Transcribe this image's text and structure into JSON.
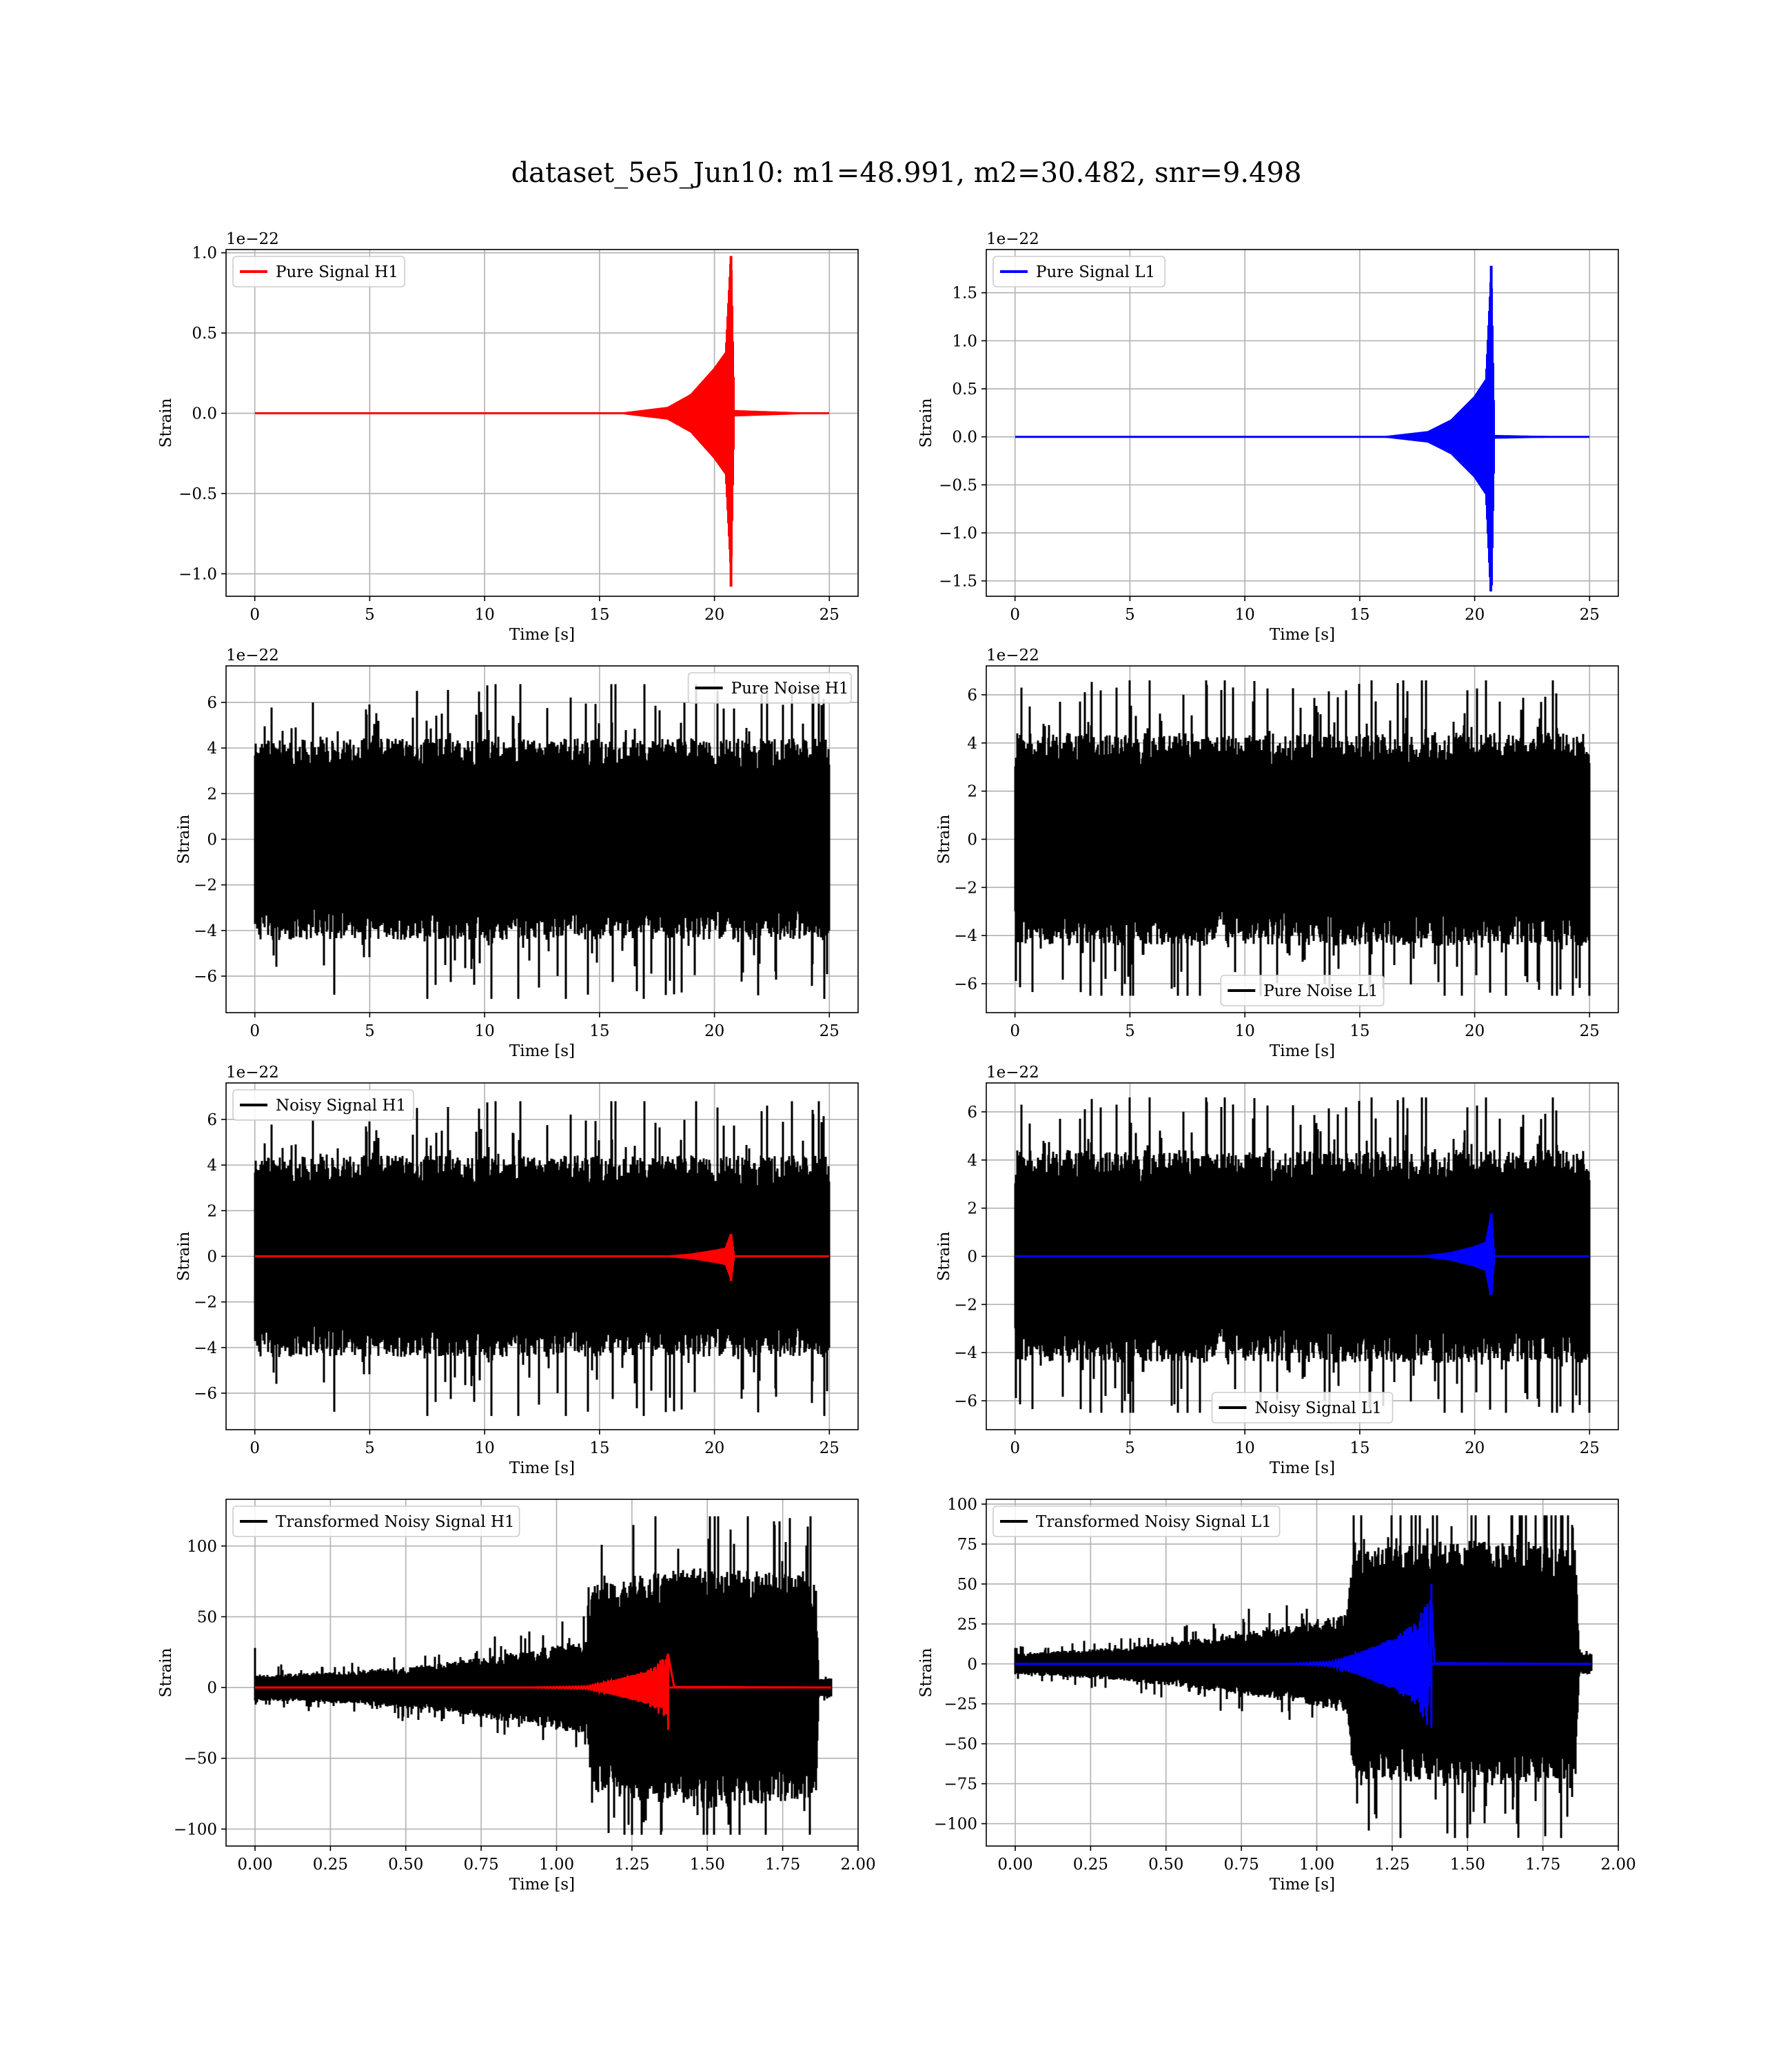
{
  "figure": {
    "title": "dataset_5e5_Jun10: m1=48.991, m2=30.482, snr=9.498"
  },
  "colors": {
    "h1_signal": "#ff0000",
    "l1_signal": "#0000ff",
    "noise": "#000000",
    "grid": "#b0b0b0"
  },
  "chart_data": [
    {
      "type": "line",
      "id": "pure-signal-h1",
      "xlabel": "Time [s]",
      "ylabel": "Strain",
      "offset_text": "1e−22",
      "xlim": [
        -1.25,
        26.25
      ],
      "ylim": [
        -1.14,
        1.02
      ],
      "xticks": [
        0,
        5,
        10,
        15,
        20,
        25
      ],
      "xtick_labels": [
        "0",
        "5",
        "10",
        "15",
        "20",
        "25"
      ],
      "yticks": [
        -1.0,
        -0.5,
        0.0,
        0.5,
        1.0
      ],
      "ytick_labels": [
        "−1.0",
        "−0.5",
        "0.0",
        "0.5",
        "1.0"
      ],
      "legend": {
        "label": "Pure Signal H1",
        "loc": "upper left",
        "color": "#ff0000"
      },
      "series": [
        {
          "name": "Pure Signal H1",
          "kind": "chirp",
          "color": "#ff0000",
          "t_start": 0,
          "t_end": 25,
          "t_merger": 20.72,
          "merger_min": -1.08,
          "merger_max": 0.98,
          "envelope": [
            [
              0,
              0
            ],
            [
              16,
              0.005
            ],
            [
              18,
              0.04
            ],
            [
              19,
              0.12
            ],
            [
              20,
              0.28
            ],
            [
              20.5,
              0.38
            ],
            [
              20.72,
              0.98
            ],
            [
              20.85,
              0.02
            ],
            [
              25,
              0
            ]
          ]
        }
      ]
    },
    {
      "type": "line",
      "id": "pure-signal-l1",
      "xlabel": "Time [s]",
      "ylabel": "Strain",
      "offset_text": "1e−22",
      "xlim": [
        -1.25,
        26.25
      ],
      "ylim": [
        -1.66,
        1.95
      ],
      "xticks": [
        0,
        5,
        10,
        15,
        20,
        25
      ],
      "xtick_labels": [
        "0",
        "5",
        "10",
        "15",
        "20",
        "25"
      ],
      "yticks": [
        -1.5,
        -1.0,
        -0.5,
        0.0,
        0.5,
        1.0,
        1.5
      ],
      "ytick_labels": [
        "−1.5",
        "−1.0",
        "−0.5",
        "0.0",
        "0.5",
        "1.0",
        "1.5"
      ],
      "legend": {
        "label": "Pure Signal L1",
        "loc": "upper left",
        "color": "#0000ff"
      },
      "series": [
        {
          "name": "Pure Signal L1",
          "kind": "chirp",
          "color": "#0000ff",
          "t_start": 0,
          "t_end": 25,
          "t_merger": 20.72,
          "merger_min": -1.55,
          "merger_max": 1.78,
          "envelope": [
            [
              0,
              0
            ],
            [
              16,
              0.005
            ],
            [
              18,
              0.06
            ],
            [
              19,
              0.18
            ],
            [
              20,
              0.42
            ],
            [
              20.5,
              0.6
            ],
            [
              20.72,
              1.7
            ],
            [
              20.85,
              0.02
            ],
            [
              25,
              0
            ]
          ]
        }
      ]
    },
    {
      "type": "line",
      "id": "pure-noise-h1",
      "xlabel": "Time [s]",
      "ylabel": "Strain",
      "offset_text": "1e−22",
      "xlim": [
        -1.25,
        26.25
      ],
      "ylim": [
        -7.6,
        7.6
      ],
      "xticks": [
        0,
        5,
        10,
        15,
        20,
        25
      ],
      "xtick_labels": [
        "0",
        "5",
        "10",
        "15",
        "20",
        "25"
      ],
      "yticks": [
        -6,
        -4,
        -2,
        0,
        2,
        4,
        6
      ],
      "ytick_labels": [
        "−6",
        "−4",
        "−2",
        "0",
        "2",
        "4",
        "6"
      ],
      "legend": {
        "label": "Pure Noise H1",
        "loc": "upper right",
        "color": "#000000"
      },
      "series": [
        {
          "name": "Pure Noise H1",
          "kind": "noise",
          "color": "#000000",
          "t_start": 0,
          "t_end": 25,
          "core_amp": 3.4,
          "max": 6.8,
          "min": -7.0,
          "seed": 11
        }
      ]
    },
    {
      "type": "line",
      "id": "pure-noise-l1",
      "xlabel": "Time [s]",
      "ylabel": "Strain",
      "offset_text": "1e−22",
      "xlim": [
        -1.25,
        26.25
      ],
      "ylim": [
        -7.2,
        7.2
      ],
      "xticks": [
        0,
        5,
        10,
        15,
        20,
        25
      ],
      "xtick_labels": [
        "0",
        "5",
        "10",
        "15",
        "20",
        "25"
      ],
      "yticks": [
        -6,
        -4,
        -2,
        0,
        2,
        4,
        6
      ],
      "ytick_labels": [
        "−6",
        "−4",
        "−2",
        "0",
        "2",
        "4",
        "6"
      ],
      "legend": {
        "label": "Pure Noise L1",
        "loc": "lower center",
        "color": "#000000"
      },
      "series": [
        {
          "name": "Pure Noise L1",
          "kind": "noise",
          "color": "#000000",
          "t_start": 0,
          "t_end": 25,
          "core_amp": 3.4,
          "max": 6.6,
          "min": -6.5,
          "seed": 23
        }
      ]
    },
    {
      "type": "line",
      "id": "noisy-signal-h1",
      "xlabel": "Time [s]",
      "ylabel": "Strain",
      "offset_text": "1e−22",
      "xlim": [
        -1.25,
        26.25
      ],
      "ylim": [
        -7.6,
        7.6
      ],
      "xticks": [
        0,
        5,
        10,
        15,
        20,
        25
      ],
      "xtick_labels": [
        "0",
        "5",
        "10",
        "15",
        "20",
        "25"
      ],
      "yticks": [
        -6,
        -4,
        -2,
        0,
        2,
        4,
        6
      ],
      "ytick_labels": [
        "−6",
        "−4",
        "−2",
        "0",
        "2",
        "4",
        "6"
      ],
      "legend": {
        "label": "Noisy Signal H1",
        "loc": "upper left",
        "color": "#000000"
      },
      "series": [
        {
          "name": "Noisy Signal H1",
          "kind": "noise",
          "color": "#000000",
          "t_start": 0,
          "t_end": 25,
          "core_amp": 3.4,
          "max": 6.8,
          "min": -7.0,
          "seed": 11
        },
        {
          "kind": "chirp",
          "color": "#ff0000",
          "t_start": 0,
          "t_end": 25,
          "t_merger": 20.72,
          "merger_min": -1.08,
          "merger_max": 0.98,
          "envelope": [
            [
              0,
              0
            ],
            [
              16,
              0.005
            ],
            [
              18,
              0.04
            ],
            [
              19,
              0.12
            ],
            [
              20,
              0.28
            ],
            [
              20.5,
              0.38
            ],
            [
              20.72,
              0.98
            ],
            [
              20.85,
              0.02
            ],
            [
              25,
              0
            ]
          ]
        }
      ]
    },
    {
      "type": "line",
      "id": "noisy-signal-l1",
      "xlabel": "Time [s]",
      "ylabel": "Strain",
      "offset_text": "1e−22",
      "xlim": [
        -1.25,
        26.25
      ],
      "ylim": [
        -7.2,
        7.2
      ],
      "xticks": [
        0,
        5,
        10,
        15,
        20,
        25
      ],
      "xtick_labels": [
        "0",
        "5",
        "10",
        "15",
        "20",
        "25"
      ],
      "yticks": [
        -6,
        -4,
        -2,
        0,
        2,
        4,
        6
      ],
      "ytick_labels": [
        "−6",
        "−4",
        "−2",
        "0",
        "2",
        "4",
        "6"
      ],
      "legend": {
        "label": "Noisy Signal L1",
        "loc": "lower center",
        "color": "#000000"
      },
      "series": [
        {
          "name": "Noisy Signal L1",
          "kind": "noise",
          "color": "#000000",
          "t_start": 0,
          "t_end": 25,
          "core_amp": 3.4,
          "max": 6.6,
          "min": -6.5,
          "seed": 23
        },
        {
          "kind": "chirp",
          "color": "#0000ff",
          "t_start": 0,
          "t_end": 25,
          "t_merger": 20.72,
          "merger_min": -1.55,
          "merger_max": 1.78,
          "envelope": [
            [
              0,
              0
            ],
            [
              16,
              0.005
            ],
            [
              18,
              0.06
            ],
            [
              19,
              0.18
            ],
            [
              20,
              0.42
            ],
            [
              20.5,
              0.6
            ],
            [
              20.72,
              1.7
            ],
            [
              20.85,
              0.02
            ],
            [
              25,
              0
            ]
          ]
        }
      ]
    },
    {
      "type": "line",
      "id": "transformed-noisy-signal-h1",
      "xlabel": "Time [s]",
      "ylabel": "Strain",
      "offset_text": "",
      "xlim": [
        -0.096,
        2.0
      ],
      "ylim": [
        -112,
        133
      ],
      "xticks": [
        0,
        0.25,
        0.5,
        0.75,
        1.0,
        1.25,
        1.5,
        1.75,
        2.0
      ],
      "xtick_labels": [
        "0.00",
        "0.25",
        "0.50",
        "0.75",
        "1.00",
        "1.25",
        "1.50",
        "1.75",
        "2.00"
      ],
      "yticks": [
        -100,
        -50,
        0,
        50,
        100
      ],
      "ytick_labels": [
        "−100",
        "−50",
        "0",
        "50",
        "100"
      ],
      "legend": {
        "label": "Transformed Noisy Signal H1",
        "loc": "upper left",
        "color": "#000000"
      },
      "series": [
        {
          "name": "Transformed Noisy Signal H1",
          "kind": "noise_profile",
          "color": "#000000",
          "seed": 37,
          "t_start": 0,
          "t_end": 1.91,
          "max": 121,
          "min": -104,
          "start_spike": 28,
          "profile": [
            [
              0,
              7
            ],
            [
              0.35,
              9
            ],
            [
              0.6,
              13
            ],
            [
              0.9,
              20
            ],
            [
              1.1,
              26
            ],
            [
              1.12,
              58
            ],
            [
              1.5,
              66
            ],
            [
              1.86,
              60
            ],
            [
              1.87,
              5
            ],
            [
              1.91,
              5
            ]
          ]
        },
        {
          "kind": "chirp",
          "color": "#ff0000",
          "t_start": 0,
          "t_end": 1.91,
          "t_merger": 1.37,
          "merger_min": -30,
          "merger_max": 24,
          "envelope": [
            [
              0,
              0
            ],
            [
              0.9,
              0
            ],
            [
              1.1,
              1
            ],
            [
              1.2,
              6
            ],
            [
              1.3,
              12
            ],
            [
              1.36,
              22
            ],
            [
              1.37,
              26
            ],
            [
              1.39,
              0.5
            ],
            [
              1.91,
              0
            ]
          ]
        }
      ]
    },
    {
      "type": "line",
      "id": "transformed-noisy-signal-l1",
      "xlabel": "Time [s]",
      "ylabel": "Strain",
      "offset_text": "",
      "xlim": [
        -0.096,
        2.0
      ],
      "ylim": [
        -114,
        103
      ],
      "xticks": [
        0,
        0.25,
        0.5,
        0.75,
        1.0,
        1.25,
        1.5,
        1.75,
        2.0
      ],
      "xtick_labels": [
        "0.00",
        "0.25",
        "0.50",
        "0.75",
        "1.00",
        "1.25",
        "1.50",
        "1.75",
        "2.00"
      ],
      "yticks": [
        -100,
        -75,
        -50,
        -25,
        0,
        25,
        50,
        75,
        100
      ],
      "ytick_labels": [
        "−100",
        "−75",
        "−50",
        "−25",
        "0",
        "25",
        "50",
        "75",
        "100"
      ],
      "legend": {
        "label": "Transformed Noisy Signal L1",
        "loc": "upper left",
        "color": "#000000"
      },
      "series": [
        {
          "name": "Transformed Noisy Signal L1",
          "kind": "noise_profile",
          "color": "#000000",
          "seed": 53,
          "t_start": 0,
          "t_end": 1.91,
          "max": 93,
          "min": -109,
          "start_spike": 10,
          "profile": [
            [
              0,
              5
            ],
            [
              0.35,
              8
            ],
            [
              0.6,
              12
            ],
            [
              0.9,
              18
            ],
            [
              1.1,
              24
            ],
            [
              1.12,
              55
            ],
            [
              1.5,
              60
            ],
            [
              1.86,
              55
            ],
            [
              1.87,
              5
            ],
            [
              1.91,
              5
            ]
          ]
        },
        {
          "kind": "chirp",
          "color": "#0000ff",
          "t_start": 0,
          "t_end": 1.91,
          "t_merger": 1.38,
          "merger_min": -40,
          "merger_max": 50,
          "envelope": [
            [
              0,
              0
            ],
            [
              0.9,
              0
            ],
            [
              1.05,
              1.5
            ],
            [
              1.15,
              8
            ],
            [
              1.25,
              16
            ],
            [
              1.33,
              26
            ],
            [
              1.38,
              45
            ],
            [
              1.39,
              0.5
            ],
            [
              1.91,
              0
            ]
          ]
        }
      ]
    }
  ]
}
